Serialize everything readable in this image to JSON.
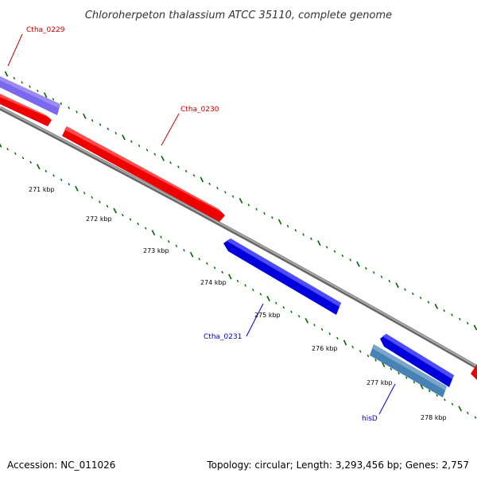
{
  "title": "Chloroherpeton thalassium ATCC 35110, complete genome",
  "colors": {
    "forward": "#ff0000",
    "reverse": "#0000ff",
    "rna_or_other": "#7b68ee",
    "hisD": "#4682b4",
    "backbone": "#888888",
    "ticks": "#006400"
  },
  "genes": [
    {
      "name": "Ctha_0229",
      "color": "#7b68ee"
    },
    {
      "name": "",
      "color": "#ff0000"
    },
    {
      "name": "Ctha_0230",
      "color": "#ff0000"
    },
    {
      "name": "Ctha_0231",
      "color": "#0000ff"
    },
    {
      "name": "",
      "color": "#0000ff"
    },
    {
      "name": "hisD",
      "color": "#4682b4"
    },
    {
      "name": "",
      "color": "#ff0000"
    }
  ],
  "scale_labels": [
    "271 kbp",
    "272 kbp",
    "273 kbp",
    "274 kbp",
    "275 kbp",
    "276 kbp",
    "277 kbp",
    "278 kbp"
  ],
  "footer": {
    "accession": "Accession: NC_011026",
    "topology": "Topology: circular; Length: 3,293,456 bp; Genes: 2,757"
  }
}
